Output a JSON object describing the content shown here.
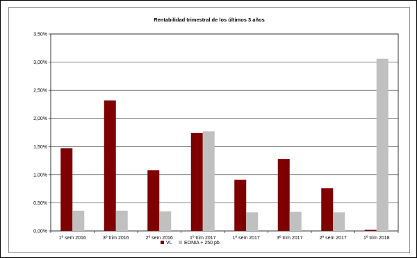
{
  "chart_data": {
    "type": "bar",
    "title": "Rentabilidad trimestral de los últimos 3 años",
    "xlabel": "",
    "ylabel": "",
    "categories": [
      "1º sem 2016",
      "3º trim 2016",
      "2º sem 2016",
      "1º trim 2017",
      "1º sem 2017",
      "3º trim 2017",
      "2º sem 2017",
      "1º trim 2018"
    ],
    "series": [
      {
        "name": "VL",
        "color": "#7f0000",
        "values": [
          1.47,
          2.32,
          1.08,
          1.74,
          0.91,
          1.28,
          0.76,
          0.02
        ]
      },
      {
        "name": "EONIA + 250 pb",
        "color": "#c0c0c0",
        "values": [
          0.36,
          0.36,
          0.35,
          1.77,
          0.33,
          0.34,
          0.33,
          3.06
        ]
      }
    ],
    "ylim": [
      0,
      3.5
    ],
    "yticks": [
      "0,00%",
      "0,50%",
      "1,00%",
      "1,50%",
      "2,00%",
      "2,50%",
      "3,00%",
      "3,50%"
    ],
    "grid": true,
    "legend_position": "bottom"
  }
}
